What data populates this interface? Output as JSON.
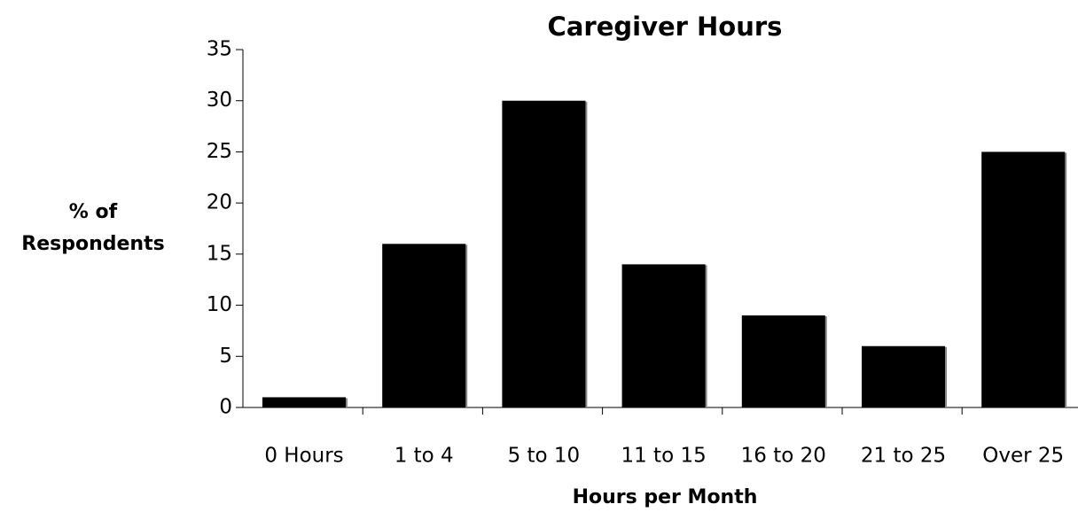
{
  "chart_data": {
    "type": "bar",
    "title": "Caregiver Hours",
    "x_label": "Hours per Month",
    "y_label": [
      "% of",
      "Respondents"
    ],
    "categories": [
      "0 Hours",
      "1 to 4",
      "5 to 10",
      "11 to 15",
      "16 to 20",
      "21 to 25",
      "Over 25"
    ],
    "values": [
      1,
      16,
      30,
      14,
      9,
      6,
      25
    ],
    "color": "#000000",
    "ylim": [
      0,
      35
    ],
    "yticks": [
      0,
      5,
      10,
      15,
      20,
      25,
      30,
      35
    ],
    "grid": false
  }
}
